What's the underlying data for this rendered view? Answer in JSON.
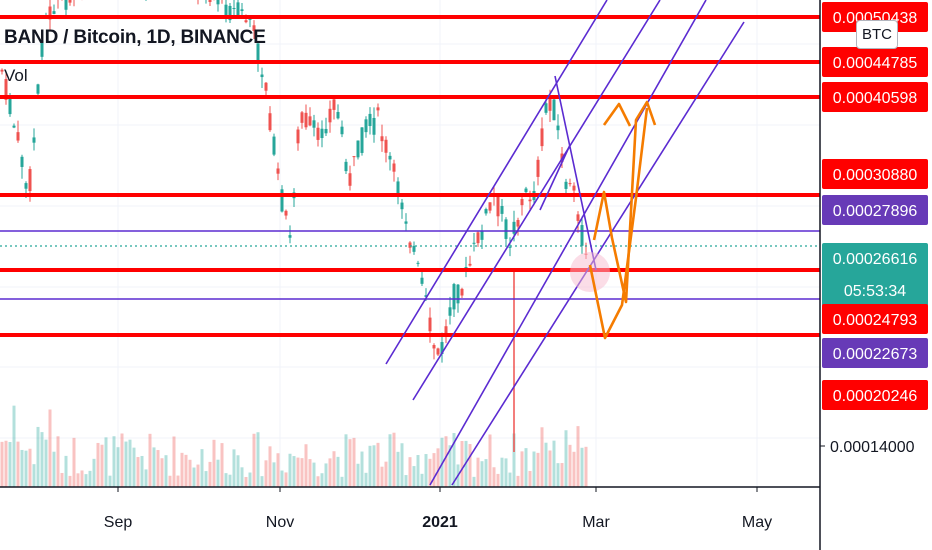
{
  "header": {
    "title": "BAND / Bitcoin, 1D, BINANCE",
    "indicator": "Vol",
    "currency_badge": "BTC"
  },
  "colors": {
    "bull": "#26a69a",
    "bear": "#ef5350",
    "level_line": "#ff0000",
    "channel": "#5b2bd1",
    "path": "#f57c00",
    "label_red": "#ff0000",
    "label_purple": "#673ab7",
    "label_teal": "#26a69a",
    "grid": "#f0f3fa"
  },
  "chart_data": {
    "type": "candlestick",
    "title": "BAND / Bitcoin, 1D, BINANCE",
    "x_axis": {
      "ticks": [
        "Sep",
        "Nov",
        "2021",
        "Mar",
        "May"
      ]
    },
    "y_axis": {
      "ticks": [
        "0.00014000"
      ]
    },
    "price_labels": [
      {
        "text": "0.00050438",
        "kind": "level"
      },
      {
        "text": "0.00044785",
        "kind": "level"
      },
      {
        "text": "0.00040598",
        "kind": "level"
      },
      {
        "text": "0.00030880",
        "kind": "level"
      },
      {
        "text": "0.00027896",
        "kind": "channel"
      },
      {
        "text": "0.00026616",
        "countdown": "05:53:34",
        "kind": "last"
      },
      {
        "text": "0.00024793",
        "kind": "level"
      },
      {
        "text": "0.00022673",
        "kind": "channel"
      },
      {
        "text": "0.00020246",
        "kind": "level"
      }
    ],
    "last_price": 0.00026616,
    "countdown": "05:53:34",
    "red_levels": [
      0.00050438,
      0.00044785,
      0.00040598,
      0.0003088,
      0.00024793,
      0.00020246
    ],
    "purple_levels": [
      0.00027896,
      0.00022673
    ],
    "grid": true,
    "legend": "top-left"
  }
}
